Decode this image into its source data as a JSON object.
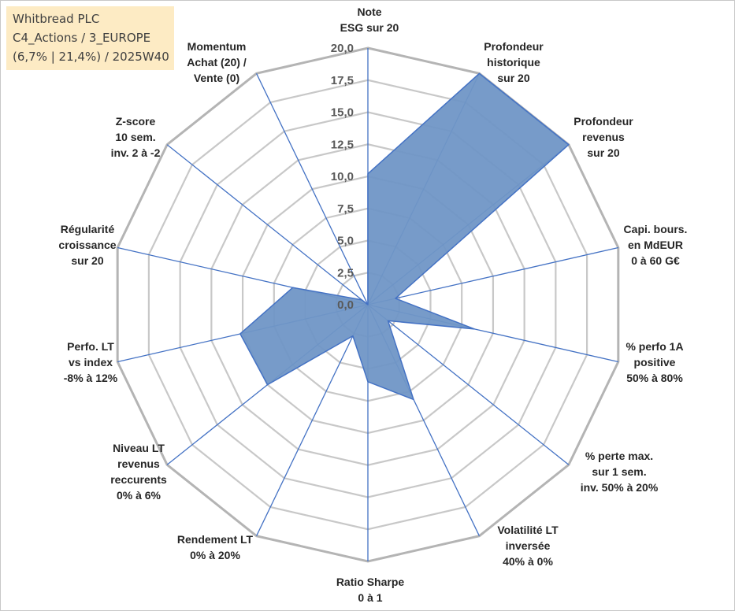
{
  "title_box": {
    "line1": "Whitbread PLC",
    "line2": "C4_Actions / 3_EUROPE",
    "line3": "(6,7% | 21,4%) / 2025W40"
  },
  "colors": {
    "fill": "#7096c6",
    "stroke": "#4472c4",
    "spoke": "#4472c4",
    "grid": "#c8c8c8",
    "outer_grid": "#b4b4b4",
    "title_bg": "#fdebc4"
  },
  "chart_data": {
    "type": "radar",
    "rmin": 0,
    "rmax": 20,
    "tick_step": 2.5,
    "tick_labels": [
      "0,0",
      "2,5",
      "5,0",
      "7,5",
      "10,0",
      "12,5",
      "15,0",
      "17,5",
      "20,0"
    ],
    "axes": [
      [
        "Note",
        "ESG sur 20"
      ],
      [
        "Profondeur",
        "historique",
        "sur 20"
      ],
      [
        "Profondeur",
        "revenus",
        "sur 20"
      ],
      [
        "Capi. bours.",
        "en MdEUR",
        "0 à 60 G€"
      ],
      [
        "% perfo 1A",
        "positive",
        "50% à 80%"
      ],
      [
        "% perte max.",
        "sur 1 sem.",
        "inv. 50% à 20%"
      ],
      [
        "Volatilité LT",
        "inversée",
        "40% à 0%"
      ],
      [
        "Ratio Sharpe",
        "0 à 1"
      ],
      [
        "Rendement LT",
        "0% à 20%"
      ],
      [
        "Niveau LT",
        "revenus",
        "reccurents",
        "0% à 6%"
      ],
      [
        "Perfo. LT",
        "vs index",
        "-8% à 12%"
      ],
      [
        "Régularité",
        "croissance",
        "sur 20"
      ],
      [
        "Z-score",
        "10 sem.",
        "inv. 2 à -2"
      ],
      [
        "Momentum",
        "Achat (20) /",
        "Vente (0)"
      ]
    ],
    "series": [
      {
        "values": [
          10.2,
          20.0,
          20.0,
          2.2,
          8.5,
          2.0,
          8.2,
          6.0,
          2.7,
          10.0,
          10.2,
          6.0,
          0.6,
          0.0
        ]
      }
    ]
  }
}
